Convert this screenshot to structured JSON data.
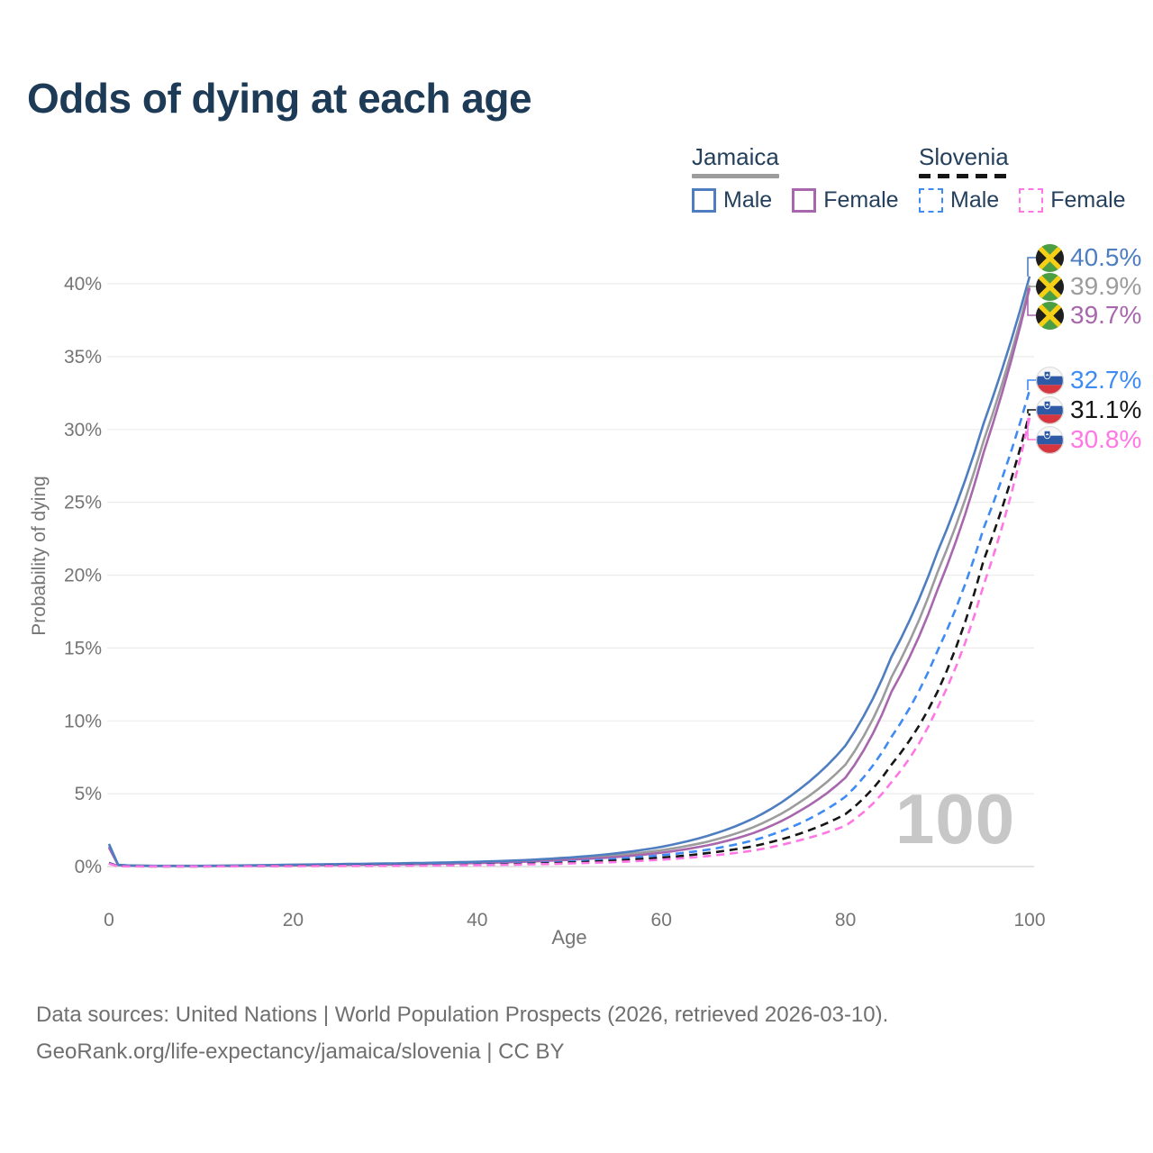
{
  "title": "Odds of dying at each age",
  "watermark": "100",
  "footer": {
    "line1": "Data sources: United Nations | World Population Prospects (2026, retrieved 2026-03-10).",
    "line2": "GeoRank.org/life-expectancy/jamaica/slovenia | CC BY"
  },
  "legend": {
    "groups": [
      {
        "name": "Jamaica",
        "line_style": "solid",
        "underline_color": "#9c9c9c",
        "items": [
          {
            "label": "Male",
            "color": "#4e7dc0",
            "style": "solid"
          },
          {
            "label": "Female",
            "color": "#a867ad",
            "style": "solid"
          }
        ]
      },
      {
        "name": "Slovenia",
        "line_style": "dashed",
        "underline_color": "#161616",
        "items": [
          {
            "label": "Male",
            "color": "#3e8bf4",
            "style": "dashed"
          },
          {
            "label": "Female",
            "color": "#ff77e4",
            "style": "dashed"
          }
        ]
      }
    ]
  },
  "chart_data": {
    "type": "line",
    "title": "Odds of dying at each age",
    "xlabel": "Age",
    "ylabel": "Probability of dying",
    "xlim": [
      0,
      100
    ],
    "ylim_pct": [
      0,
      40
    ],
    "grid": "horizontal",
    "legend_position": "top-right",
    "x_ticks": [
      0,
      20,
      40,
      60,
      80,
      100
    ],
    "y_ticks_pct": [
      0,
      5,
      10,
      15,
      20,
      25,
      30,
      35,
      40
    ],
    "y_tick_labels": [
      "0%",
      "5%",
      "10%",
      "15%",
      "20%",
      "25%",
      "30%",
      "35%",
      "40%"
    ],
    "ages": [
      0,
      1,
      2,
      5,
      10,
      15,
      20,
      25,
      30,
      35,
      40,
      45,
      50,
      55,
      60,
      65,
      70,
      75,
      80,
      85,
      90,
      95,
      100
    ],
    "series": [
      {
        "id": "jamaica-total",
        "name": "Jamaica — Both sexes",
        "country": "Jamaica",
        "sex": "both",
        "style": "solid",
        "color": "#9c9c9c",
        "values_pct": [
          1.4,
          0.11,
          0.07,
          0.045,
          0.04,
          0.07,
          0.11,
          0.14,
          0.18,
          0.22,
          0.28,
          0.38,
          0.54,
          0.77,
          1.12,
          1.7,
          2.7,
          4.4,
          7.0,
          13.0,
          20.2,
          29.2,
          39.9
        ]
      },
      {
        "id": "jamaica-female",
        "name": "Jamaica — Female",
        "country": "Jamaica",
        "sex": "female",
        "style": "solid",
        "color": "#a867ad",
        "values_pct": [
          1.3,
          0.1,
          0.06,
          0.04,
          0.035,
          0.05,
          0.08,
          0.11,
          0.14,
          0.18,
          0.24,
          0.33,
          0.46,
          0.65,
          0.95,
          1.45,
          2.3,
          3.8,
          6.1,
          12.0,
          19.0,
          28.4,
          39.7
        ]
      },
      {
        "id": "jamaica-male",
        "name": "Jamaica — Male",
        "country": "Jamaica",
        "sex": "male",
        "style": "solid",
        "color": "#4e7dc0",
        "values_pct": [
          1.55,
          0.12,
          0.08,
          0.05,
          0.05,
          0.08,
          0.13,
          0.17,
          0.21,
          0.26,
          0.33,
          0.44,
          0.62,
          0.9,
          1.35,
          2.1,
          3.3,
          5.3,
          8.3,
          14.4,
          21.6,
          30.4,
          40.5
        ]
      },
      {
        "id": "slovenia-male",
        "name": "Slovenia — Male",
        "country": "Slovenia",
        "sex": "male",
        "style": "dashed",
        "color": "#3e8bf4",
        "values_pct": [
          0.25,
          0.03,
          0.02,
          0.015,
          0.015,
          0.03,
          0.06,
          0.08,
          0.09,
          0.11,
          0.15,
          0.22,
          0.34,
          0.52,
          0.78,
          1.15,
          1.8,
          2.95,
          4.8,
          8.9,
          14.8,
          23.2,
          32.7
        ]
      },
      {
        "id": "slovenia-total",
        "name": "Slovenia — Both sexes",
        "country": "Slovenia",
        "sex": "both",
        "style": "dashed",
        "color": "#161616",
        "values_pct": [
          0.22,
          0.025,
          0.018,
          0.012,
          0.012,
          0.025,
          0.045,
          0.06,
          0.07,
          0.09,
          0.12,
          0.18,
          0.27,
          0.41,
          0.61,
          0.92,
          1.4,
          2.25,
          3.6,
          7.0,
          12.0,
          21.0,
          31.1
        ]
      },
      {
        "id": "slovenia-female",
        "name": "Slovenia — Female",
        "country": "Slovenia",
        "sex": "female",
        "style": "dashed",
        "color": "#ff77e4",
        "values_pct": [
          0.2,
          0.02,
          0.015,
          0.01,
          0.01,
          0.02,
          0.03,
          0.04,
          0.05,
          0.07,
          0.1,
          0.14,
          0.21,
          0.31,
          0.47,
          0.72,
          1.1,
          1.8,
          2.8,
          5.8,
          10.9,
          19.3,
          30.8
        ]
      }
    ],
    "end_labels": [
      {
        "series": "jamaica-male",
        "text": "40.5%",
        "value_pct": 40.5,
        "flag": "jamaica",
        "color": "#4e7dc0"
      },
      {
        "series": "jamaica-total",
        "text": "39.9%",
        "value_pct": 39.9,
        "flag": "jamaica",
        "color": "#9c9c9c"
      },
      {
        "series": "jamaica-female",
        "text": "39.7%",
        "value_pct": 39.7,
        "flag": "jamaica",
        "color": "#a867ad"
      },
      {
        "series": "slovenia-male",
        "text": "32.7%",
        "value_pct": 32.7,
        "flag": "slovenia",
        "color": "#3e8bf4"
      },
      {
        "series": "slovenia-total",
        "text": "31.1%",
        "value_pct": 31.1,
        "flag": "slovenia",
        "color": "#161616"
      },
      {
        "series": "slovenia-female",
        "text": "30.8%",
        "value_pct": 30.8,
        "flag": "slovenia",
        "color": "#ff77e4"
      }
    ]
  }
}
